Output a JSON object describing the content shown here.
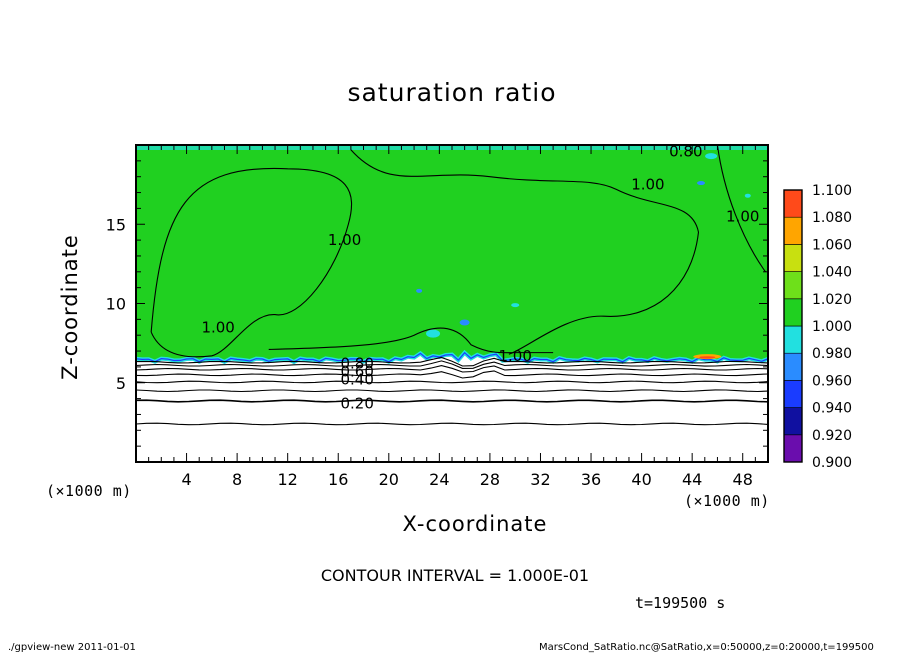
{
  "chart_data": {
    "type": "heatmap",
    "title": "saturation ratio",
    "xlabel": "X-coordinate",
    "ylabel": "Z-coordinate",
    "x_unit": "(×1000 m)",
    "y_unit": "(×1000 m)",
    "xlim": [
      0,
      50
    ],
    "ylim": [
      0,
      20
    ],
    "x_ticks": [
      4,
      8,
      12,
      16,
      20,
      24,
      28,
      32,
      36,
      40,
      44,
      48
    ],
    "y_ticks": [
      5,
      10,
      15
    ],
    "colorbar": {
      "levels": [
        0.9,
        0.92,
        0.94,
        0.96,
        0.98,
        1.0,
        1.02,
        1.04,
        1.06,
        1.08,
        1.1
      ],
      "labels": [
        "0.900",
        "0.920",
        "0.940",
        "0.960",
        "0.980",
        "1.000",
        "1.020",
        "1.040",
        "1.060",
        "1.080",
        "1.100"
      ],
      "colors": [
        "#6a0dad",
        "#1010a0",
        "#1a3cff",
        "#2a8cff",
        "#22e0e0",
        "#20d020",
        "#6ee01a",
        "#c8e010",
        "#ffa500",
        "#ff4a1a",
        "#ff8080"
      ]
    },
    "contour_labels": [
      {
        "text": "1.00",
        "x": 30,
        "z": 6.7
      },
      {
        "text": "1.00",
        "x": 16.5,
        "z": 14
      },
      {
        "text": "1.00",
        "x": 6.5,
        "z": 8.5
      },
      {
        "text": "1.00",
        "x": 40.5,
        "z": 17.5
      },
      {
        "text": "1.00",
        "x": 48,
        "z": 15.5
      },
      {
        "text": "0.80",
        "x": 43.5,
        "z": 19.6
      },
      {
        "text": "0.80",
        "x": 17.5,
        "z": 6.2
      },
      {
        "text": "0.60",
        "x": 17.5,
        "z": 5.7
      },
      {
        "text": "0.40",
        "x": 17.5,
        "z": 5.2
      },
      {
        "text": "0.20",
        "x": 17.5,
        "z": 3.7
      }
    ],
    "contour_interval_text": "CONTOUR INTERVAL = 1.000E-01",
    "time_text": "t=199500 s"
  },
  "footer": {
    "left": "./gpview-new  2011-01-01",
    "right": "MarsCond_SatRatio.nc@SatRatio,x=0:50000,z=0:20000,t=199500"
  }
}
